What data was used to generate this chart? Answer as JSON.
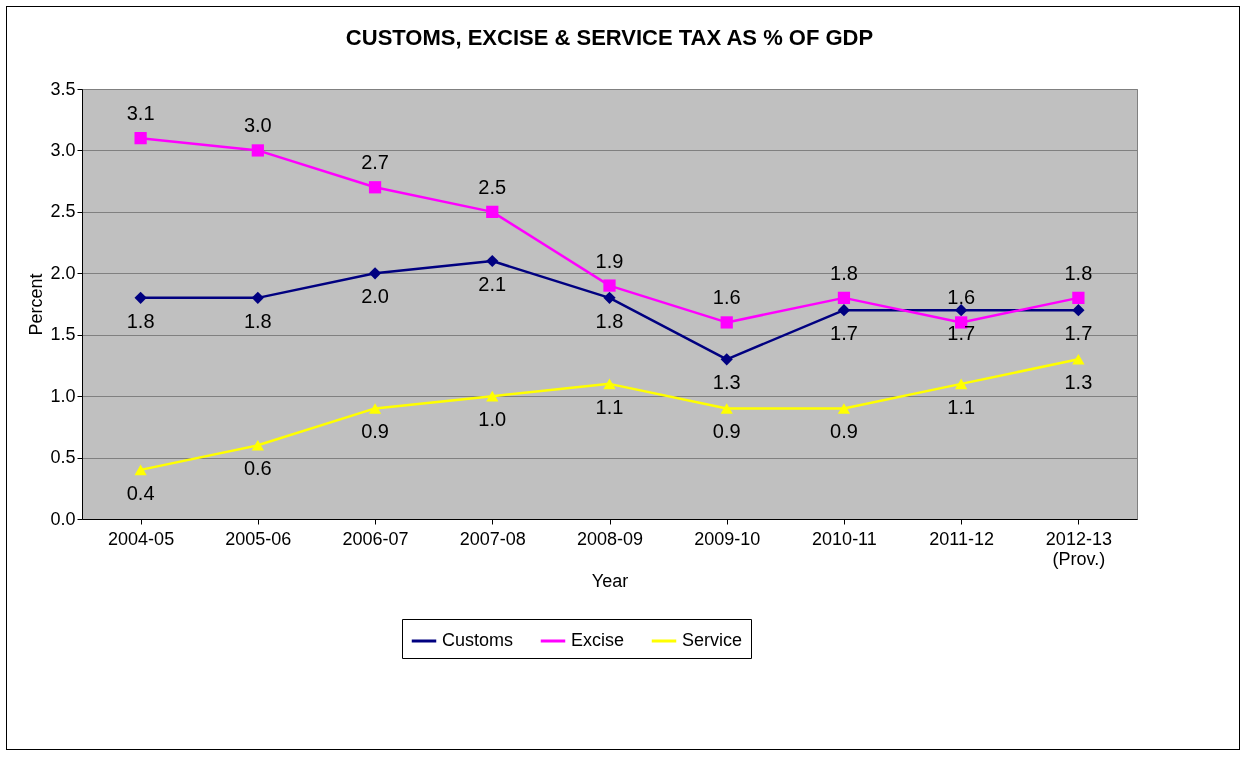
{
  "chart_data": {
    "type": "line",
    "title": "CUSTOMS, EXCISE & SERVICE TAX AS  % OF GDP",
    "xlabel": "Year",
    "ylabel": "Percent",
    "categories": [
      "2004-05",
      "2005-06",
      "2006-07",
      "2007-08",
      "2008-09",
      "2009-10",
      "2010-11",
      "2011-12",
      "2012-13 (Prov.)"
    ],
    "series": [
      {
        "name": "Customs",
        "color": "#000080",
        "marker": "diamond",
        "values": [
          1.8,
          1.8,
          2.0,
          2.1,
          1.8,
          1.3,
          1.7,
          1.7,
          1.7
        ],
        "value_labels": [
          "1.8",
          "1.8",
          "2.0",
          "2.1",
          "1.8",
          "1.3",
          "1.7",
          "1.7",
          "1.7"
        ]
      },
      {
        "name": "Excise",
        "color": "#ff00ff",
        "marker": "square",
        "values": [
          3.1,
          3.0,
          2.7,
          2.5,
          1.9,
          1.6,
          1.8,
          1.6,
          1.8
        ],
        "value_labels": [
          "3.1",
          "3.0",
          "2.7",
          "2.5",
          "1.9",
          "1.6",
          "1.8",
          "1.6",
          "1.8"
        ]
      },
      {
        "name": "Service",
        "color": "#ffff00",
        "marker": "triangle",
        "values": [
          0.4,
          0.6,
          0.9,
          1.0,
          1.1,
          0.9,
          0.9,
          1.1,
          1.3
        ],
        "value_labels": [
          "0.4",
          "0.6",
          "0.9",
          "1.0",
          "1.1",
          "0.9",
          "0.9",
          "1.1",
          "1.3"
        ]
      }
    ],
    "ylim": [
      0,
      3.5
    ],
    "yticks": [
      {
        "value": 0,
        "label": "0.0"
      },
      0.5,
      {
        "value": 1,
        "label": "1.0"
      },
      1.5,
      {
        "value": 2,
        "label": "2.0"
      },
      2.5,
      {
        "value": 3,
        "label": "3.0"
      },
      3.5
    ],
    "grid": "y",
    "legend": "bottom"
  }
}
